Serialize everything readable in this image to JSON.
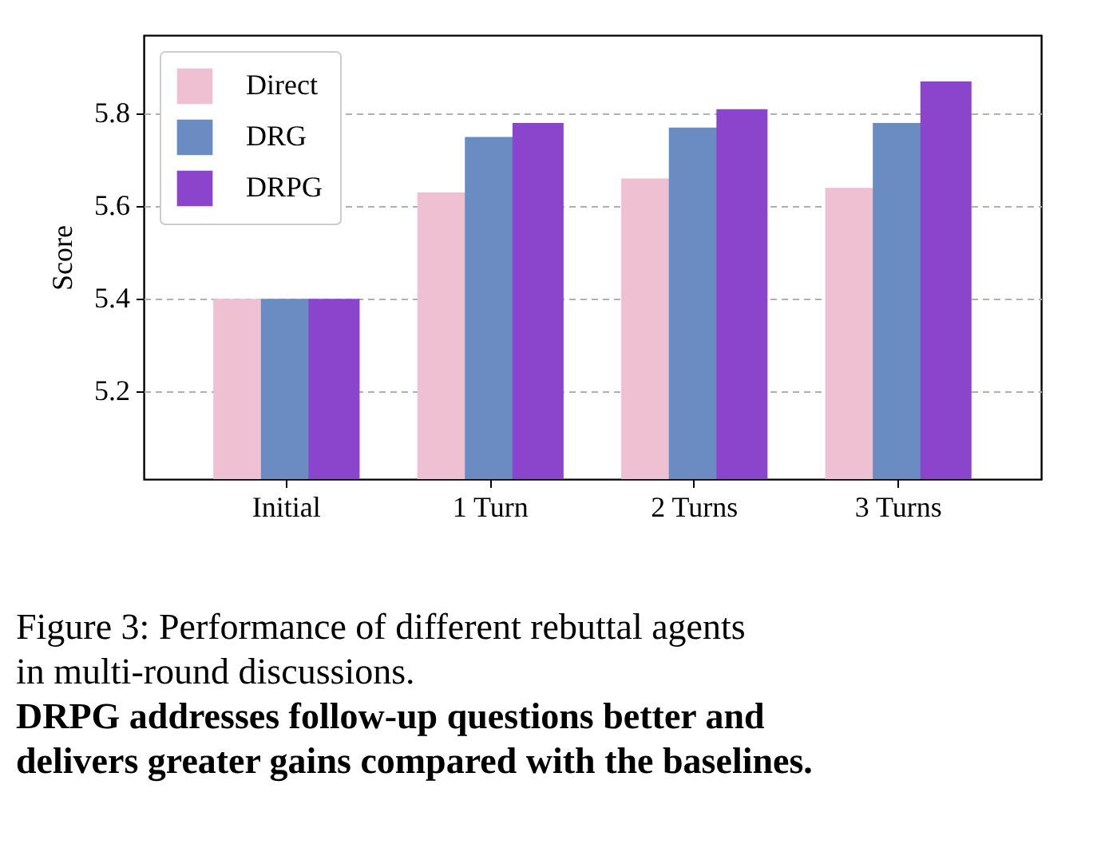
{
  "chart_data": {
    "type": "bar",
    "ylabel": "Score",
    "categories": [
      "Initial",
      "1 Turn",
      "2 Turns",
      "3 Turns"
    ],
    "series": [
      {
        "name": "Direct",
        "color": "#efbfd2",
        "values": [
          5.4,
          5.63,
          5.66,
          5.64
        ]
      },
      {
        "name": "DRG",
        "color": "#6b8bc3",
        "values": [
          5.4,
          5.75,
          5.77,
          5.78
        ]
      },
      {
        "name": "DRPG",
        "color": "#8a45cc",
        "values": [
          5.4,
          5.78,
          5.81,
          5.87
        ]
      }
    ],
    "ylim": [
      5.01,
      5.97
    ],
    "yticks": [
      5.2,
      5.4,
      5.6,
      5.8
    ],
    "grid": "y",
    "legend": "top left",
    "annotations": [
      "Figure 3: Performance of different rebuttal agents in multi-round discussions.",
      "DRPG addresses follow-up questions better and delivers greater gains compared with the baselines."
    ]
  }
}
